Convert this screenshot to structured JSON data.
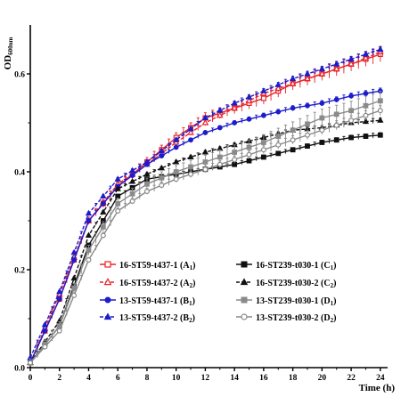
{
  "chart_data": {
    "type": "line",
    "xlabel": "Time (h)",
    "ylabel": "OD",
    "ylabel_subscript": "600nm",
    "xlim": [
      0,
      24.5
    ],
    "ylim": [
      0,
      0.7
    ],
    "xticks": [
      0,
      2,
      4,
      6,
      8,
      10,
      12,
      14,
      16,
      18,
      20,
      22,
      24
    ],
    "yticks": [
      0.0,
      0.2,
      0.4,
      0.6
    ],
    "ytick_labels": [
      "0.0",
      "0.2",
      "0.4",
      "0.6"
    ],
    "legend_placement": "lower-center",
    "series": [
      {
        "label_main": "16-ST59-t437-1 (A",
        "label_sub": "1",
        "label_end": ")",
        "color": "#e8232a",
        "marker": "square-open",
        "dashed": false,
        "errbar": 0.015,
        "points": [
          [
            0,
            0.01
          ],
          [
            2,
            0.14
          ],
          [
            4,
            0.3
          ],
          [
            6,
            0.37
          ],
          [
            8,
            0.42
          ],
          [
            10,
            0.47
          ],
          [
            12,
            0.51
          ],
          [
            14,
            0.53
          ],
          [
            16,
            0.55
          ],
          [
            18,
            0.58
          ],
          [
            20,
            0.6
          ],
          [
            22,
            0.62
          ],
          [
            24,
            0.64
          ]
        ]
      },
      {
        "label_main": "16-ST59-t437-2 (A",
        "label_sub": "2",
        "label_end": ")",
        "color": "#e8232a",
        "marker": "triangle-open",
        "dashed": true,
        "errbar": 0.008,
        "points": [
          [
            0,
            0.01
          ],
          [
            2,
            0.15
          ],
          [
            4,
            0.3
          ],
          [
            6,
            0.375
          ],
          [
            8,
            0.415
          ],
          [
            10,
            0.46
          ],
          [
            12,
            0.5
          ],
          [
            14,
            0.53
          ],
          [
            16,
            0.56
          ],
          [
            18,
            0.58
          ],
          [
            20,
            0.6
          ],
          [
            22,
            0.62
          ],
          [
            24,
            0.645
          ]
        ]
      },
      {
        "label_main": "13-ST59-t437-1 (B",
        "label_sub": "1",
        "label_end": ")",
        "color": "#1c1ccc",
        "marker": "circle-filled",
        "dashed": false,
        "errbar": 0.006,
        "points": [
          [
            0,
            0.01
          ],
          [
            2,
            0.14
          ],
          [
            4,
            0.3
          ],
          [
            6,
            0.37
          ],
          [
            8,
            0.415
          ],
          [
            10,
            0.45
          ],
          [
            12,
            0.48
          ],
          [
            14,
            0.5
          ],
          [
            16,
            0.515
          ],
          [
            18,
            0.53
          ],
          [
            20,
            0.54
          ],
          [
            22,
            0.555
          ],
          [
            24,
            0.565
          ]
        ]
      },
      {
        "label_main": "13-ST59-t437-2 (B",
        "label_sub": "2",
        "label_end": ")",
        "color": "#1c1ccc",
        "marker": "triangle-filled",
        "dashed": true,
        "errbar": 0.006,
        "points": [
          [
            0,
            0.02
          ],
          [
            2,
            0.155
          ],
          [
            4,
            0.315
          ],
          [
            6,
            0.385
          ],
          [
            8,
            0.42
          ],
          [
            10,
            0.465
          ],
          [
            12,
            0.51
          ],
          [
            14,
            0.54
          ],
          [
            16,
            0.565
          ],
          [
            18,
            0.59
          ],
          [
            20,
            0.61
          ],
          [
            22,
            0.63
          ],
          [
            24,
            0.65
          ]
        ]
      },
      {
        "label_main": "16-ST239-t030-1 (C",
        "label_sub": "1",
        "label_end": ")",
        "color": "#111111",
        "marker": "square-filled",
        "dashed": false,
        "errbar": 0.005,
        "points": [
          [
            0,
            0.01
          ],
          [
            2,
            0.085
          ],
          [
            4,
            0.25
          ],
          [
            6,
            0.35
          ],
          [
            8,
            0.385
          ],
          [
            10,
            0.395
          ],
          [
            12,
            0.405
          ],
          [
            14,
            0.415
          ],
          [
            16,
            0.43
          ],
          [
            18,
            0.445
          ],
          [
            20,
            0.46
          ],
          [
            22,
            0.47
          ],
          [
            24,
            0.475
          ]
        ]
      },
      {
        "label_main": "16-ST239-t030-2 (C",
        "label_sub": "2",
        "label_end": ")",
        "color": "#111111",
        "marker": "triangle-filled",
        "dashed": true,
        "errbar": 0.005,
        "points": [
          [
            0,
            0.01
          ],
          [
            2,
            0.095
          ],
          [
            4,
            0.27
          ],
          [
            6,
            0.365
          ],
          [
            8,
            0.395
          ],
          [
            10,
            0.42
          ],
          [
            12,
            0.44
          ],
          [
            14,
            0.455
          ],
          [
            16,
            0.47
          ],
          [
            18,
            0.485
          ],
          [
            20,
            0.49
          ],
          [
            22,
            0.5
          ],
          [
            24,
            0.505
          ]
        ]
      },
      {
        "label_main": "13-ST239-t030-1 (D",
        "label_sub": "1",
        "label_end": ")",
        "color": "#8a8a8a",
        "marker": "square-filled",
        "dashed": false,
        "errbar": 0.02,
        "points": [
          [
            0,
            0.01
          ],
          [
            2,
            0.085
          ],
          [
            4,
            0.24
          ],
          [
            6,
            0.335
          ],
          [
            8,
            0.375
          ],
          [
            10,
            0.4
          ],
          [
            12,
            0.42
          ],
          [
            14,
            0.44
          ],
          [
            16,
            0.46
          ],
          [
            18,
            0.485
          ],
          [
            20,
            0.51
          ],
          [
            22,
            0.525
          ],
          [
            24,
            0.545
          ]
        ]
      },
      {
        "label_main": "13-ST239-t030-2 (D",
        "label_sub": "2",
        "label_end": ")",
        "color": "#8a8a8a",
        "marker": "circle-open",
        "dashed": false,
        "errbar": 0.01,
        "points": [
          [
            0,
            0.01
          ],
          [
            2,
            0.075
          ],
          [
            4,
            0.22
          ],
          [
            6,
            0.32
          ],
          [
            8,
            0.36
          ],
          [
            10,
            0.385
          ],
          [
            12,
            0.405
          ],
          [
            14,
            0.425
          ],
          [
            16,
            0.445
          ],
          [
            18,
            0.465
          ],
          [
            20,
            0.485
          ],
          [
            22,
            0.505
          ],
          [
            24,
            0.525
          ]
        ]
      }
    ]
  }
}
